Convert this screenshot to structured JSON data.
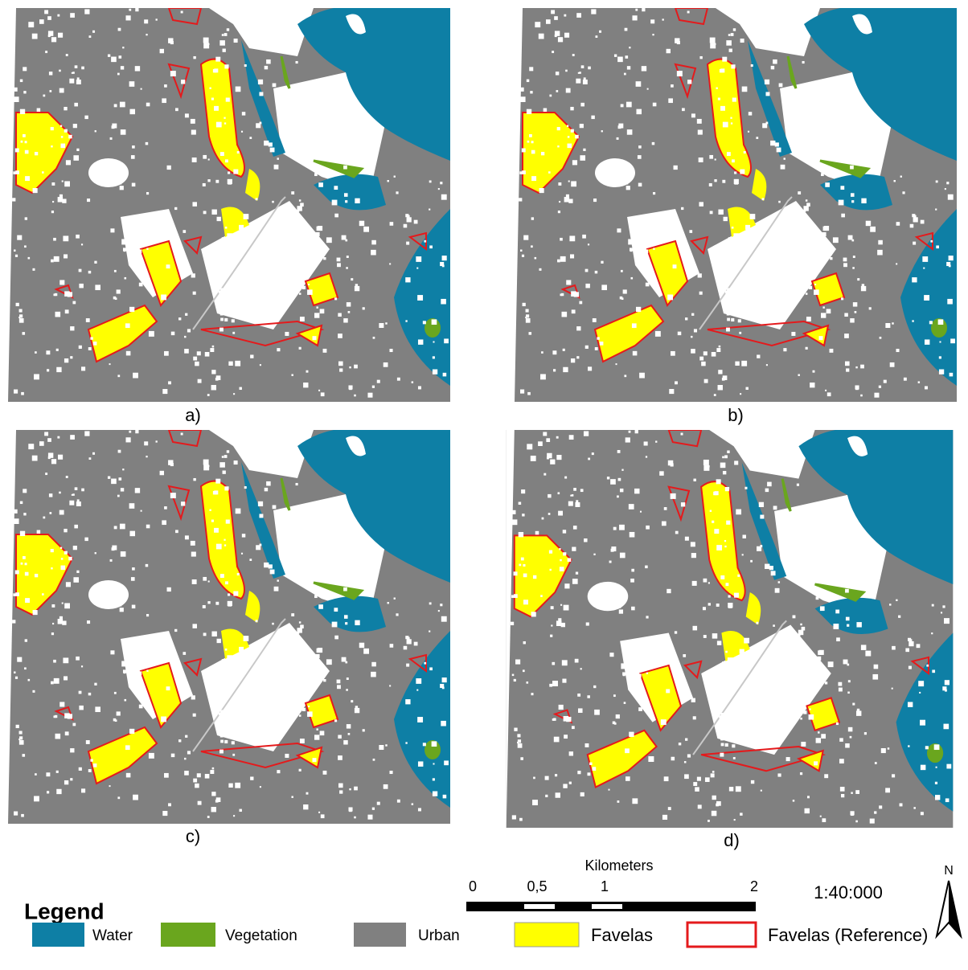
{
  "panels": [
    {
      "label": "a)"
    },
    {
      "label": "b)"
    },
    {
      "label": "c)"
    },
    {
      "label": "d)"
    }
  ],
  "scale": {
    "title": "Kilometers",
    "ticks": [
      "0",
      "0,5",
      "1",
      "2"
    ],
    "ratio": "1:40:000",
    "north": "N"
  },
  "legend": {
    "title": "Legend",
    "items": [
      {
        "label": "Water",
        "color": "#0e7fa5"
      },
      {
        "label": "Vegetation",
        "color": "#6aa61e"
      },
      {
        "label": "Urban",
        "color": "#808080"
      },
      {
        "label": "Favelas",
        "color": "#ffff00"
      },
      {
        "label": "Favelas (Reference)",
        "color": "#e41a1c"
      }
    ]
  }
}
